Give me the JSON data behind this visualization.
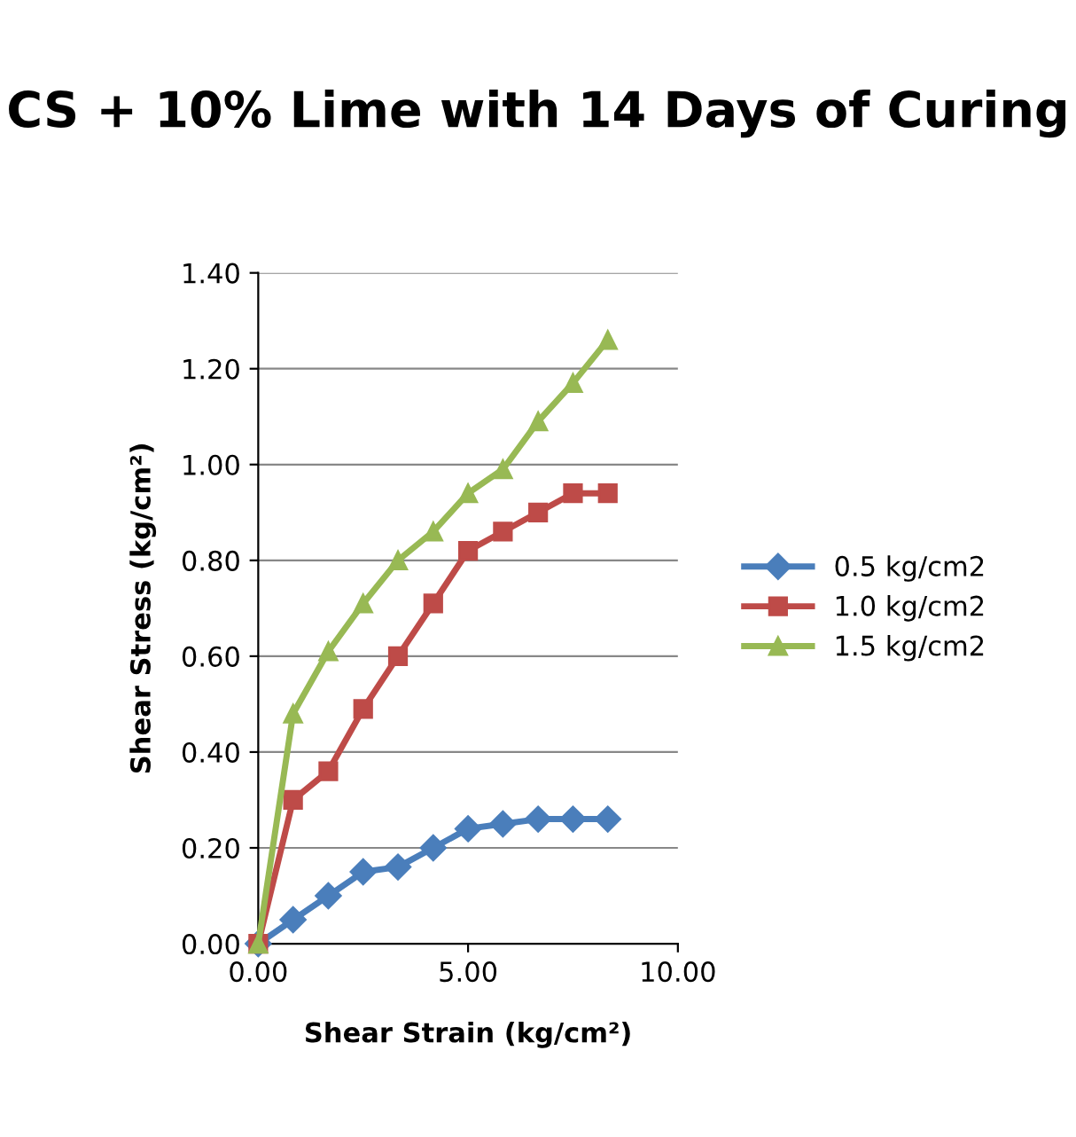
{
  "chart_data": {
    "type": "line",
    "title": "CS + 10% Lime with 14 Days of Curing",
    "xlabel": "Shear Strain (kg/cm²)",
    "ylabel": "Shear Stress (kg/cm²)",
    "x": [
      0,
      0.83,
      1.67,
      2.5,
      3.33,
      4.17,
      5.0,
      5.83,
      6.67,
      7.5,
      8.33
    ],
    "series": [
      {
        "name": "0.5 kg/cm2",
        "color": "#4a7ebb",
        "marker": "diamond",
        "values": [
          0,
          0.05,
          0.1,
          0.15,
          0.16,
          0.2,
          0.24,
          0.25,
          0.26,
          0.26,
          0.26
        ]
      },
      {
        "name": "1.0 kg/cm2",
        "color": "#be4b48",
        "marker": "square",
        "values": [
          0,
          0.3,
          0.36,
          0.49,
          0.6,
          0.71,
          0.82,
          0.86,
          0.9,
          0.94,
          0.94
        ]
      },
      {
        "name": "1.5 kg/cm2",
        "color": "#98b954",
        "marker": "triangle",
        "values": [
          0,
          0.48,
          0.61,
          0.71,
          0.8,
          0.86,
          0.94,
          0.99,
          1.09,
          1.17,
          1.26
        ]
      }
    ],
    "xlim": [
      0,
      10
    ],
    "xticks": [
      {
        "value": 0,
        "label": "0.00"
      },
      {
        "value": 5,
        "label": "5.00"
      },
      {
        "value": 10,
        "label": "10.00"
      }
    ],
    "ylim": [
      0,
      1.4
    ],
    "yticks": [
      {
        "value": 0,
        "label": "0.00"
      },
      {
        "value": 0.2,
        "label": "0.20"
      },
      {
        "value": 0.4,
        "label": "0.40"
      },
      {
        "value": 0.6,
        "label": "0.60"
      },
      {
        "value": 0.8,
        "label": "0.80"
      },
      {
        "value": 1.0,
        "label": "1.00"
      },
      {
        "value": 1.2,
        "label": "1.20"
      },
      {
        "value": 1.4,
        "label": "1.40"
      }
    ],
    "grid": "y",
    "legend": "right",
    "line_style": "solid"
  }
}
